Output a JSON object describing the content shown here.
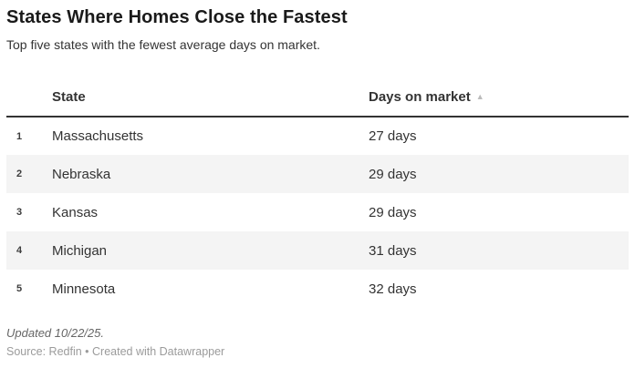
{
  "header": {
    "title": "States Where Homes Close the Fastest",
    "subtitle": "Top five states with the fewest average days on market."
  },
  "table": {
    "columns": {
      "state": "State",
      "days": "Days on market"
    },
    "sort_icon": "▲",
    "sort": {
      "column": "Days on market",
      "direction": "ascending"
    },
    "rows": [
      {
        "rank": "1",
        "state": "Massachusetts",
        "days": "27 days"
      },
      {
        "rank": "2",
        "state": "Nebraska",
        "days": "29 days"
      },
      {
        "rank": "3",
        "state": "Kansas",
        "days": "29 days"
      },
      {
        "rank": "4",
        "state": "Michigan",
        "days": "31 days"
      },
      {
        "rank": "5",
        "state": "Minnesota",
        "days": "32 days"
      }
    ]
  },
  "footer": {
    "updated": "Updated 10/22/25.",
    "source": "Source: Redfin • Created with Datawrapper"
  },
  "colors": {
    "title_text": "#1a1a1a",
    "body_text": "#333333",
    "stripe": "#f4f4f4",
    "header_border": "#333333",
    "sort_icon": "#bbbbbb",
    "muted_text": "#9b9b9b"
  },
  "chart_data": {
    "type": "table",
    "title": "States Where Homes Close the Fastest",
    "subtitle": "Top five states with the fewest average days on market.",
    "columns": [
      "State",
      "Days on market"
    ],
    "rows": [
      [
        "Massachusetts",
        27
      ],
      [
        "Nebraska",
        29
      ],
      [
        "Kansas",
        29
      ],
      [
        "Michigan",
        31
      ],
      [
        "Minnesota",
        32
      ]
    ],
    "units": "days",
    "sort": {
      "column": "Days on market",
      "direction": "ascending"
    },
    "notes": {
      "updated": "Updated 10/22/25.",
      "source": "Redfin",
      "tool": "Datawrapper"
    }
  }
}
